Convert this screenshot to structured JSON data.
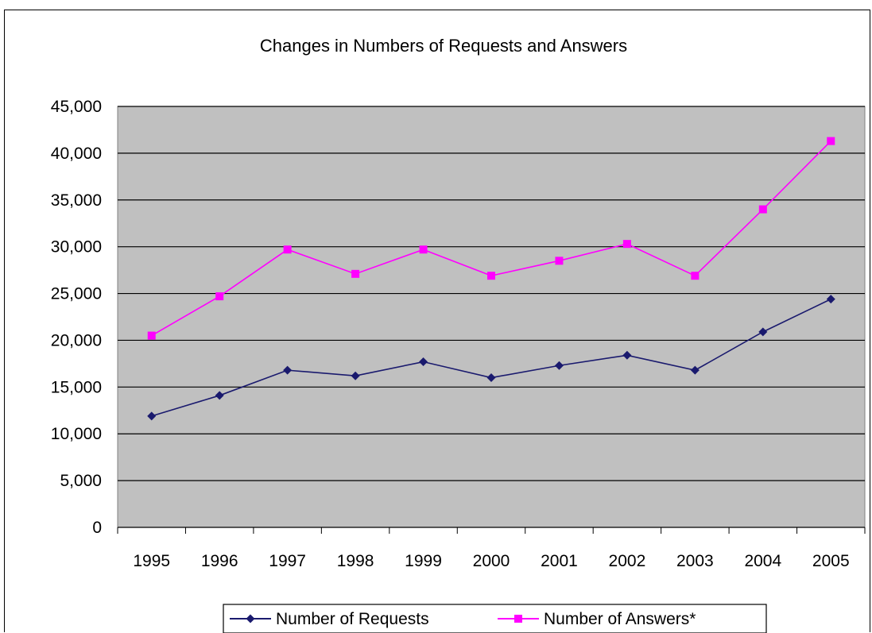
{
  "chart_data": {
    "type": "line",
    "title": "Changes in Numbers of Requests and Answers",
    "categories": [
      "1995",
      "1996",
      "1997",
      "1998",
      "1999",
      "2000",
      "2001",
      "2002",
      "2003",
      "2004",
      "2005"
    ],
    "ylim": [
      0,
      45000
    ],
    "yticks": [
      "0",
      "5,000",
      "10,000",
      "15,000",
      "20,000",
      "25,000",
      "30,000",
      "35,000",
      "40,000",
      "45,000"
    ],
    "grid": true,
    "legend_position": "bottom",
    "plot_background": "#c0c0c0",
    "series": [
      {
        "name": "Number of Requests",
        "color": "#1a1a6e",
        "marker": "diamond",
        "values": [
          11900,
          14100,
          16800,
          16200,
          17700,
          16000,
          17300,
          18400,
          16800,
          20900,
          24400
        ]
      },
      {
        "name": "Number of Answers*",
        "color": "#ff00ff",
        "marker": "square",
        "values": [
          20500,
          24700,
          29700,
          27100,
          29700,
          26900,
          28500,
          30300,
          26900,
          34000,
          41300
        ]
      }
    ]
  }
}
